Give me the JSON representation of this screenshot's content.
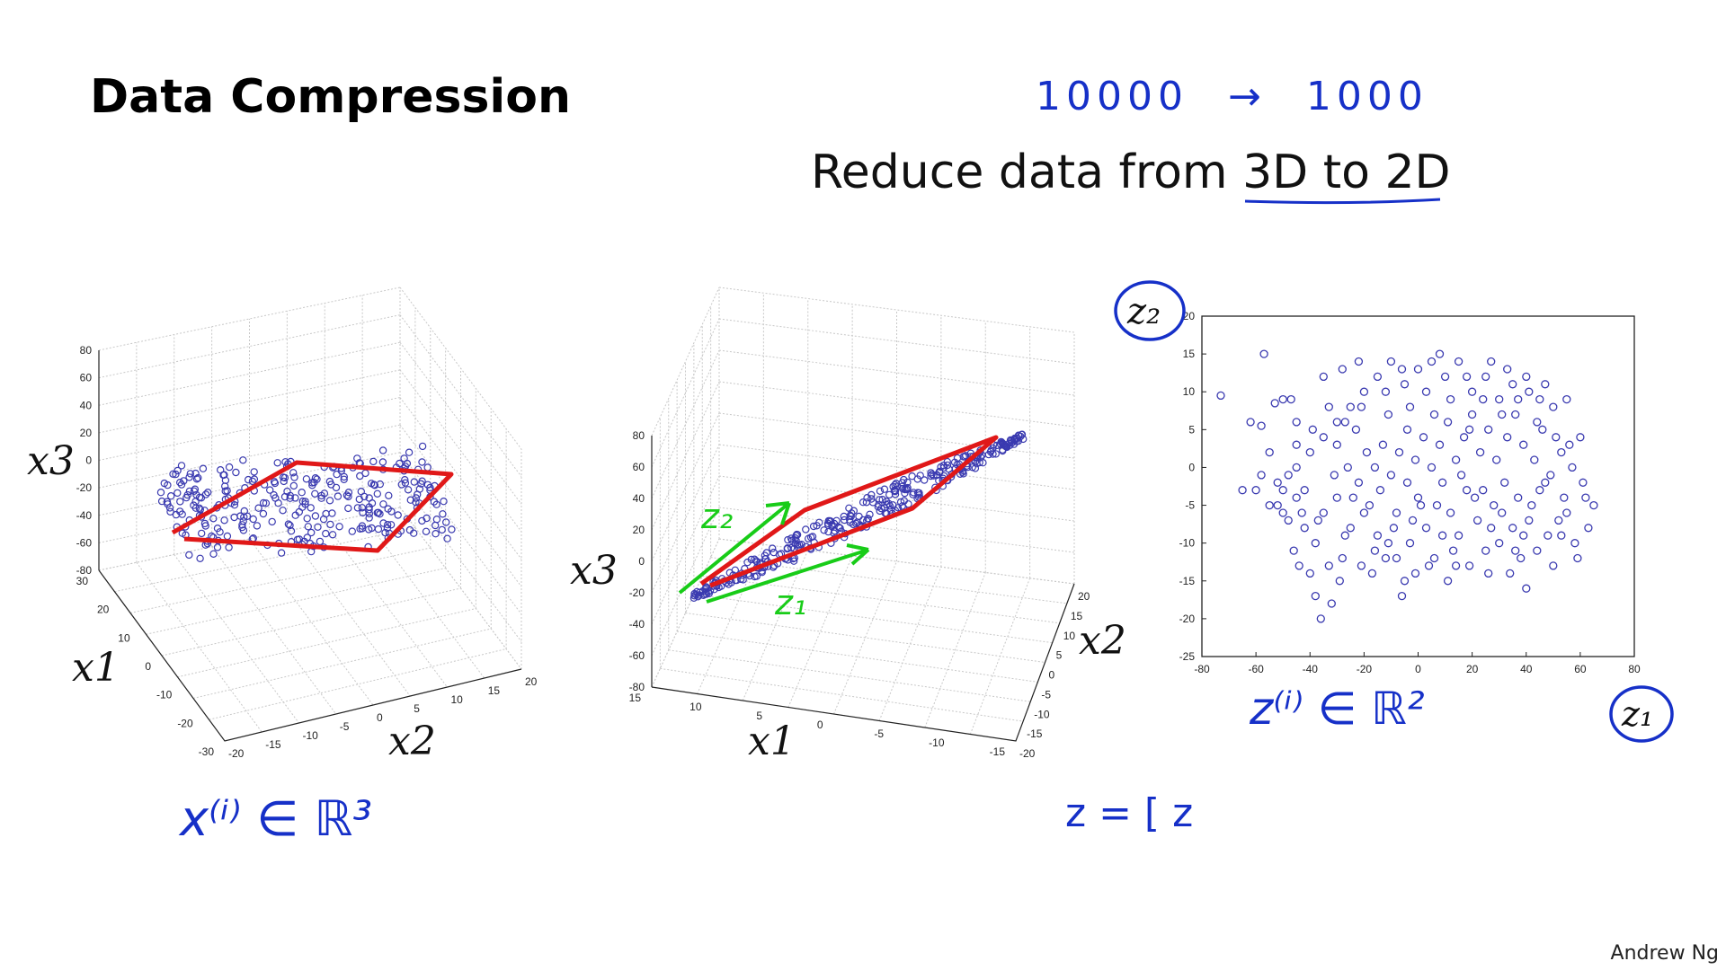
{
  "slide": {
    "title": "Data Compression",
    "subtitle_prefix": "Reduce data from ",
    "subtitle_highlight": "3D to 2D",
    "footer": "Andrew Ng"
  },
  "annotations": {
    "dims_from": "10000",
    "dims_arrow": "→",
    "dims_to": "1000",
    "x_in_R3": "x⁽ⁱ⁾ ∈ ℝ³",
    "z_in_R2": "z⁽ⁱ⁾ ∈ ℝ²",
    "z_vector": "z = [ z",
    "z1_green": "z₁",
    "z2_green": "z₂",
    "z1_circled": "z₁",
    "z2_circled": "z₂"
  },
  "colors": {
    "points": "#3a3ab0",
    "red_ink": "#e01818",
    "green_ink": "#18cc18",
    "blue_ink": "#1630c8"
  },
  "chart_data": [
    {
      "type": "scatter",
      "projection": "3d",
      "title": "",
      "xlabel": "x1",
      "ylabel": "x2",
      "zlabel": "x3",
      "x_ticks": [
        "30",
        "20",
        "10",
        "0",
        "-10",
        "-20",
        "-30"
      ],
      "y_ticks": [
        "-20",
        "-15",
        "-10",
        "-5",
        "0",
        "5",
        "10",
        "15",
        "20"
      ],
      "z_ticks": [
        "80",
        "60",
        "40",
        "20",
        "0",
        "-20",
        "-40",
        "-60",
        "-80"
      ],
      "xlim": [
        -30,
        30
      ],
      "ylim": [
        -20,
        20
      ],
      "zlim": [
        -80,
        80
      ],
      "grid": true,
      "points_note": "~300 points scattered in a flat plane near x3 ≈ 0, outlined in red"
    },
    {
      "type": "scatter",
      "projection": "3d",
      "title": "",
      "xlabel": "x1",
      "ylabel": "x2",
      "zlabel": "x3",
      "x_ticks": [
        "15",
        "10",
        "5",
        "0",
        "-5",
        "-10",
        "-15"
      ],
      "y_ticks": [
        "-20",
        "-15",
        "-10",
        "-5",
        "0",
        "5",
        "10",
        "15",
        "20"
      ],
      "z_ticks": [
        "80",
        "60",
        "40",
        "20",
        "0",
        "-20",
        "-40",
        "-60",
        "-80"
      ],
      "xlim": [
        -15,
        15
      ],
      "ylim": [
        -20,
        20
      ],
      "zlim": [
        -80,
        80
      ],
      "grid": true,
      "points_note": "same data rotated; points lie along a thin plane seen edge-on, with green z1/z2 direction arrows"
    },
    {
      "type": "scatter",
      "title": "",
      "xlabel": "z1",
      "ylabel": "z2",
      "xlim": [
        -80,
        80
      ],
      "ylim": [
        -25,
        20
      ],
      "x_ticks": [
        -80,
        -60,
        -40,
        -20,
        0,
        20,
        40,
        60,
        80
      ],
      "y_ticks": [
        -25,
        -20,
        -15,
        -10,
        -5,
        0,
        5,
        10,
        15,
        20
      ],
      "grid": false,
      "points": [
        [
          -73,
          9.5
        ],
        [
          -62,
          6
        ],
        [
          -57,
          15
        ],
        [
          -58,
          5.5
        ],
        [
          -53,
          8.5
        ],
        [
          -50,
          9
        ],
        [
          -47,
          9
        ],
        [
          -45,
          6
        ],
        [
          -55,
          2
        ],
        [
          -52,
          -2
        ],
        [
          -48,
          -1
        ],
        [
          -45,
          0
        ],
        [
          -40,
          2
        ],
        [
          -35,
          4
        ],
        [
          -30,
          6
        ],
        [
          -25,
          8
        ],
        [
          -20,
          10
        ],
        [
          -15,
          12
        ],
        [
          -10,
          14
        ],
        [
          -5,
          11
        ],
        [
          0,
          13
        ],
        [
          5,
          14
        ],
        [
          10,
          12
        ],
        [
          15,
          14
        ],
        [
          20,
          10
        ],
        [
          25,
          12
        ],
        [
          30,
          9
        ],
        [
          35,
          11
        ],
        [
          40,
          12
        ],
        [
          45,
          9
        ],
        [
          50,
          8
        ],
        [
          55,
          9
        ],
        [
          60,
          4
        ],
        [
          -60,
          -3
        ],
        [
          -55,
          -5
        ],
        [
          -50,
          -6
        ],
        [
          -45,
          -4
        ],
        [
          -42,
          -8
        ],
        [
          -38,
          -10
        ],
        [
          -35,
          -6
        ],
        [
          -30,
          -4
        ],
        [
          -28,
          -12
        ],
        [
          -25,
          -8
        ],
        [
          -22,
          -2
        ],
        [
          -18,
          -5
        ],
        [
          -15,
          -9
        ],
        [
          -12,
          -12
        ],
        [
          -8,
          -6
        ],
        [
          -5,
          -15
        ],
        [
          -3,
          -10
        ],
        [
          0,
          -4
        ],
        [
          3,
          -8
        ],
        [
          6,
          -12
        ],
        [
          9,
          -2
        ],
        [
          12,
          -6
        ],
        [
          15,
          -9
        ],
        [
          18,
          -3
        ],
        [
          22,
          -7
        ],
        [
          25,
          -11
        ],
        [
          28,
          -5
        ],
        [
          32,
          -2
        ],
        [
          35,
          -8
        ],
        [
          38,
          -12
        ],
        [
          40,
          -16
        ],
        [
          42,
          -5
        ],
        [
          45,
          -3
        ],
        [
          48,
          -9
        ],
        [
          52,
          -7
        ],
        [
          55,
          -6
        ],
        [
          58,
          -10
        ],
        [
          62,
          -4
        ],
        [
          65,
          -5
        ],
        [
          -40,
          -14
        ],
        [
          -38,
          -17
        ],
        [
          -36,
          -20
        ],
        [
          -32,
          -18
        ],
        [
          -44,
          -13
        ],
        [
          -30,
          3
        ],
        [
          -26,
          0
        ],
        [
          -23,
          5
        ],
        [
          -19,
          2
        ],
        [
          -16,
          0
        ],
        [
          -13,
          3
        ],
        [
          -10,
          -1
        ],
        [
          -7,
          2
        ],
        [
          -4,
          5
        ],
        [
          -1,
          1
        ],
        [
          2,
          4
        ],
        [
          5,
          0
        ],
        [
          8,
          3
        ],
        [
          11,
          6
        ],
        [
          14,
          1
        ],
        [
          17,
          4
        ],
        [
          20,
          7
        ],
        [
          23,
          2
        ],
        [
          26,
          5
        ],
        [
          29,
          1
        ],
        [
          33,
          4
        ],
        [
          36,
          7
        ],
        [
          39,
          3
        ],
        [
          43,
          1
        ],
        [
          46,
          5
        ],
        [
          49,
          -1
        ],
        [
          53,
          2
        ],
        [
          57,
          0
        ],
        [
          61,
          -2
        ],
        [
          -52,
          -5
        ],
        [
          -48,
          -7
        ],
        [
          -46,
          -11
        ],
        [
          -42,
          -3
        ],
        [
          -37,
          -7
        ],
        [
          -33,
          -13
        ],
        [
          -27,
          -9
        ],
        [
          -21,
          -13
        ],
        [
          -17,
          -14
        ],
        [
          -11,
          -10
        ],
        [
          -6,
          -17
        ],
        [
          -2,
          -7
        ],
        [
          4,
          -13
        ],
        [
          7,
          -5
        ],
        [
          13,
          -11
        ],
        [
          19,
          -13
        ],
        [
          24,
          -3
        ],
        [
          30,
          -10
        ],
        [
          34,
          -14
        ],
        [
          37,
          -4
        ],
        [
          44,
          -11
        ],
        [
          50,
          -13
        ],
        [
          -35,
          12
        ],
        [
          -28,
          13
        ],
        [
          -22,
          14
        ],
        [
          -12,
          10
        ],
        [
          -6,
          13
        ],
        [
          3,
          10
        ],
        [
          8,
          15
        ],
        [
          18,
          12
        ],
        [
          27,
          14
        ],
        [
          33,
          13
        ],
        [
          41,
          10
        ],
        [
          47,
          11
        ],
        [
          -58,
          -1
        ],
        [
          -65,
          -3
        ],
        [
          -20,
          -6
        ],
        [
          -14,
          -3
        ],
        [
          -9,
          -8
        ],
        [
          -4,
          -2
        ],
        [
          1,
          -5
        ],
        [
          9,
          -9
        ],
        [
          16,
          -1
        ],
        [
          21,
          -4
        ],
        [
          27,
          -8
        ],
        [
          31,
          -6
        ],
        [
          39,
          -9
        ],
        [
          47,
          -2
        ],
        [
          54,
          -4
        ],
        [
          59,
          -12
        ],
        [
          63,
          -8
        ],
        [
          -45,
          3
        ],
        [
          -39,
          5
        ],
        [
          -33,
          8
        ],
        [
          -27,
          6
        ],
        [
          -21,
          8
        ],
        [
          -11,
          7
        ],
        [
          -3,
          8
        ],
        [
          6,
          7
        ],
        [
          12,
          9
        ],
        [
          19,
          5
        ],
        [
          24,
          9
        ],
        [
          31,
          7
        ],
        [
          37,
          9
        ],
        [
          44,
          6
        ],
        [
          51,
          4
        ],
        [
          56,
          3
        ],
        [
          -31,
          -1
        ],
        [
          -24,
          -4
        ],
        [
          -8,
          -12
        ],
        [
          -1,
          -14
        ],
        [
          11,
          -15
        ],
        [
          36,
          -11
        ],
        [
          41,
          -7
        ],
        [
          53,
          -9
        ],
        [
          -50,
          -3
        ],
        [
          -43,
          -6
        ],
        [
          -29,
          -15
        ],
        [
          -16,
          -11
        ],
        [
          14,
          -13
        ],
        [
          26,
          -14
        ]
      ]
    }
  ]
}
